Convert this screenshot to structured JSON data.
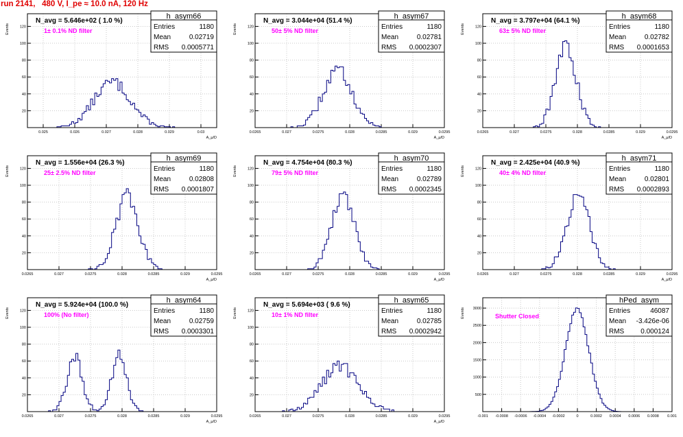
{
  "title": "run 2141,   480 V, I_pe ≈ 10.0 nA, 120 Hz",
  "chart_data": [
    {
      "type": "histogram",
      "name": "h_asym66",
      "n_avg": "N_avg = 5.646e+02 ( 1.0 %)",
      "filter": "1± 0.1% ND filter",
      "stats": {
        "entries": "1180",
        "mean": "0.02719",
        "rms": "0.0005771"
      },
      "ylabel": "Events",
      "xlabel": "A_μ/D",
      "xlim": [
        0.0245,
        0.0305
      ],
      "ylim": [
        0,
        135
      ],
      "xticks": [
        "0.025",
        "0.026",
        "0.027",
        "0.028",
        "0.029",
        "0.03"
      ],
      "yticks": [
        20,
        40,
        60,
        80,
        100,
        120
      ],
      "mean": 0.02719,
      "rms": 0.00058,
      "bins": 90
    },
    {
      "type": "histogram",
      "name": "h_asym67",
      "n_avg": "N_avg = 3.044e+04 (51.4 %)",
      "filter": "50± 5% ND filter",
      "stats": {
        "entries": "1180",
        "mean": "0.02781",
        "rms": "0.0002307"
      },
      "ylabel": "Events",
      "xlabel": "A_μ/D",
      "xlim": [
        0.0265,
        0.0295
      ],
      "ylim": [
        0,
        135
      ],
      "xticks": [
        "0.0265",
        "0.027",
        "0.0275",
        "0.028",
        "0.0285",
        "0.029",
        "0.0295"
      ],
      "yticks": [
        20,
        40,
        60,
        80,
        100,
        120
      ],
      "mean": 0.02781,
      "rms": 0.000231,
      "bins": 90
    },
    {
      "type": "histogram",
      "name": "h_asym68",
      "n_avg": "N_avg = 3.797e+04 (64.1 %)",
      "filter": "63± 5% ND filter",
      "stats": {
        "entries": "1180",
        "mean": "0.02782",
        "rms": "0.0001653"
      },
      "ylabel": "Events",
      "xlabel": "A_μ/D",
      "xlim": [
        0.0265,
        0.0295
      ],
      "ylim": [
        0,
        135
      ],
      "xticks": [
        "0.0265",
        "0.027",
        "0.0275",
        "0.028",
        "0.0285",
        "0.029",
        "0.0295"
      ],
      "yticks": [
        20,
        40,
        60,
        80,
        100,
        120
      ],
      "mean": 0.02782,
      "rms": 0.000165,
      "bins": 90
    },
    {
      "type": "histogram",
      "name": "h_asym69",
      "n_avg": "N_avg = 1.556e+04 (26.3 %)",
      "filter": "25± 2.5% ND filter",
      "stats": {
        "entries": "1180",
        "mean": "0.02808",
        "rms": "0.0001807"
      },
      "ylabel": "Events",
      "xlabel": "A_μ/D",
      "xlim": [
        0.0265,
        0.0295
      ],
      "ylim": [
        0,
        135
      ],
      "xticks": [
        "0.0265",
        "0.027",
        "0.0275",
        "0.028",
        "0.0285",
        "0.029",
        "0.0295"
      ],
      "yticks": [
        20,
        40,
        60,
        80,
        100,
        120
      ],
      "mean": 0.02808,
      "rms": 0.000181,
      "bins": 90
    },
    {
      "type": "histogram",
      "name": "h_asym70",
      "n_avg": "N_avg = 4.754e+04 (80.3 %)",
      "filter": "79± 5% ND filter",
      "stats": {
        "entries": "1180",
        "mean": "0.02789",
        "rms": "0.0002345"
      },
      "ylabel": "Events",
      "xlabel": "A_μ/D",
      "xlim": [
        0.0265,
        0.0295
      ],
      "ylim": [
        0,
        135
      ],
      "xticks": [
        "0.0265",
        "0.027",
        "0.0275",
        "0.028",
        "0.0285",
        "0.029",
        "0.0295"
      ],
      "yticks": [
        20,
        40,
        60,
        80,
        100,
        120
      ],
      "mean": 0.02789,
      "rms": 0.000235,
      "bins": 90,
      "double": true
    },
    {
      "type": "histogram",
      "name": "h_asym71",
      "n_avg": "N_avg = 2.425e+04 (40.9 %)",
      "filter": "40± 4% ND filter",
      "stats": {
        "entries": "1180",
        "mean": "0.02801",
        "rms": "0.0002893"
      },
      "ylabel": "Events",
      "xlabel": "A_μ/D",
      "xlim": [
        0.0265,
        0.0295
      ],
      "ylim": [
        0,
        135
      ],
      "xticks": [
        "0.0265",
        "0.027",
        "0.0275",
        "0.028",
        "0.0285",
        "0.029",
        "0.0295"
      ],
      "yticks": [
        20,
        40,
        60,
        80,
        100,
        120
      ],
      "mean": 0.02801,
      "rms": 0.000289,
      "bins": 90,
      "double": true
    },
    {
      "type": "histogram",
      "name": "h_asym64",
      "n_avg": "N_avg = 5.924e+04 (100.0 %)",
      "filter": "100% (No filter)",
      "stats": {
        "entries": "1180",
        "mean": "0.02759",
        "rms": "0.0003301"
      },
      "ylabel": "Events",
      "xlabel": "A_μ/D",
      "xlim": [
        0.0265,
        0.0295
      ],
      "ylim": [
        0,
        135
      ],
      "xticks": [
        "0.0265",
        "0.027",
        "0.0275",
        "0.028",
        "0.0285",
        "0.029",
        "0.0295"
      ],
      "yticks": [
        20,
        40,
        60,
        80,
        100,
        120
      ],
      "mean": 0.02759,
      "rms": 0.00033,
      "bins": 90,
      "bimodal": true
    },
    {
      "type": "histogram",
      "name": "h_asym65",
      "n_avg": "N_avg = 5.694e+03 ( 9.6 %)",
      "filter": "10± 1% ND filter",
      "stats": {
        "entries": "1180",
        "mean": "0.02785",
        "rms": "0.0002942"
      },
      "ylabel": "Events",
      "xlabel": "A_μ/D",
      "xlim": [
        0.0265,
        0.0295
      ],
      "ylim": [
        0,
        135
      ],
      "xticks": [
        "0.0265",
        "0.027",
        "0.0275",
        "0.028",
        "0.0285",
        "0.029",
        "0.0295"
      ],
      "yticks": [
        20,
        40,
        60,
        80,
        100,
        120
      ],
      "mean": 0.02785,
      "rms": 0.000294,
      "bins": 90
    },
    {
      "type": "histogram",
      "name": "hPed_asym",
      "n_avg": "",
      "filter": "Shutter Closed",
      "stats": {
        "entries": "46087",
        "mean": "-3.426e-06",
        "rms": "0.000124"
      },
      "ylabel": "Events",
      "xlabel": "",
      "xlim": [
        -0.001,
        0.001
      ],
      "ylim": [
        0,
        3300
      ],
      "xticks": [
        "-0.001",
        "-0.0008",
        "-0.0006",
        "-0.0004",
        "-0.0002",
        "0",
        "0.0002",
        "0.0004",
        "0.0006",
        "0.0008",
        "0.001"
      ],
      "yticks": [
        500,
        1000,
        1500,
        2000,
        2500,
        3000
      ],
      "mean": -3.4e-06,
      "rms": 0.000124,
      "bins": 100
    }
  ]
}
